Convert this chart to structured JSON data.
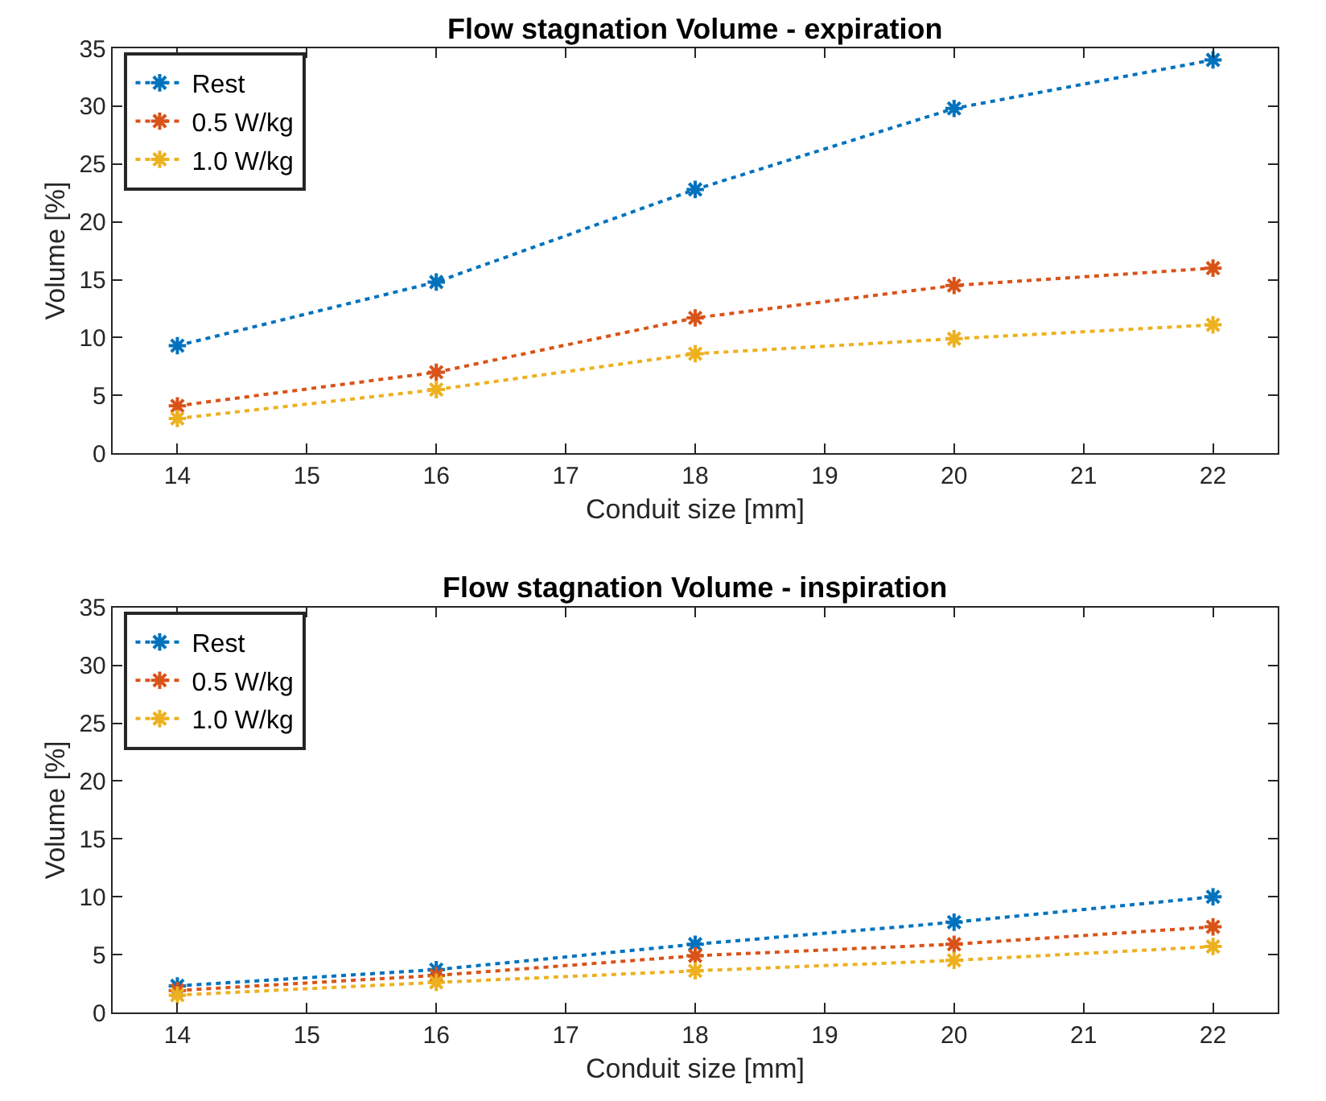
{
  "chart_data": [
    {
      "type": "line",
      "title": "Flow stagnation Volume - expiration",
      "xlabel": "Conduit size [mm]",
      "ylabel": "Volume [%]",
      "x": [
        14,
        16,
        18,
        20,
        22
      ],
      "xlim": [
        13.5,
        22.5
      ],
      "xticks": [
        14,
        15,
        16,
        17,
        18,
        19,
        20,
        21,
        22
      ],
      "ylim": [
        0,
        35
      ],
      "yticks": [
        0,
        5,
        10,
        15,
        20,
        25,
        30,
        35
      ],
      "legend": "top left",
      "marker": "cross",
      "line_style": "dotted",
      "series": [
        {
          "name": "Rest",
          "color": "#0072bd",
          "values": [
            9.3,
            14.8,
            22.8,
            29.8,
            34.0
          ]
        },
        {
          "name": "0.5 W/kg",
          "color": "#d95319",
          "values": [
            4.1,
            7.0,
            11.7,
            14.5,
            16.0
          ]
        },
        {
          "name": "1.0 W/kg",
          "color": "#edb120",
          "values": [
            3.0,
            5.5,
            8.6,
            9.9,
            11.1
          ]
        }
      ]
    },
    {
      "type": "line",
      "title": "Flow stagnation Volume - inspiration",
      "xlabel": "Conduit size [mm]",
      "ylabel": "Volume [%]",
      "x": [
        14,
        16,
        18,
        20,
        22
      ],
      "xlim": [
        13.5,
        22.5
      ],
      "xticks": [
        14,
        15,
        16,
        17,
        18,
        19,
        20,
        21,
        22
      ],
      "ylim": [
        0,
        35
      ],
      "yticks": [
        0,
        5,
        10,
        15,
        20,
        25,
        30,
        35
      ],
      "legend": "top left",
      "marker": "cross",
      "line_style": "dotted",
      "series": [
        {
          "name": "Rest",
          "color": "#0072bd",
          "values": [
            2.3,
            3.7,
            5.9,
            7.8,
            10.0
          ]
        },
        {
          "name": "0.5 W/kg",
          "color": "#d95319",
          "values": [
            1.9,
            3.2,
            4.9,
            5.9,
            7.4
          ]
        },
        {
          "name": "1.0 W/kg",
          "color": "#edb120",
          "values": [
            1.5,
            2.6,
            3.6,
            4.5,
            5.7
          ]
        }
      ]
    }
  ]
}
